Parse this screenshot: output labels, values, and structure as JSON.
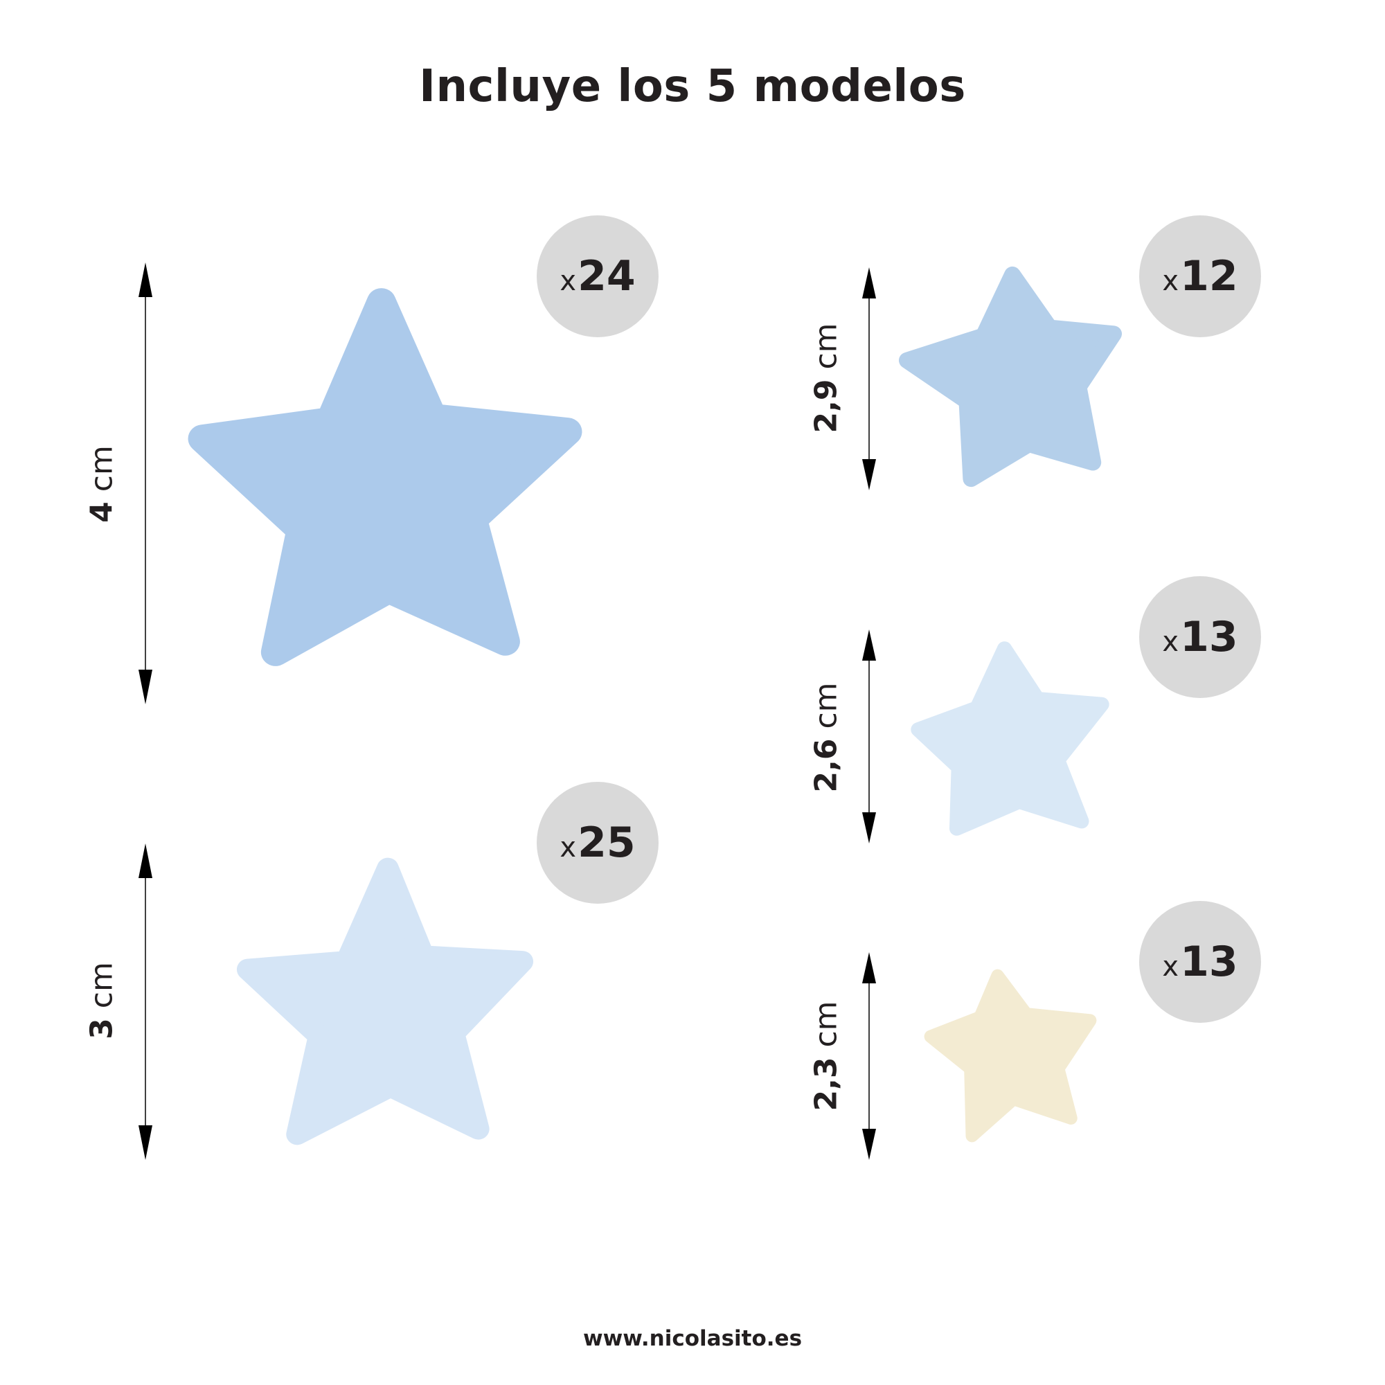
{
  "title": "Incluye los 5 modelos",
  "footer": "www.nicolasito.es",
  "models": [
    {
      "size": "4",
      "unit": "cm",
      "count_prefix": "x",
      "count": "24",
      "color": "#a8c8ea"
    },
    {
      "size": "3",
      "unit": "cm",
      "count_prefix": "x",
      "count": "25",
      "color": "#d3e4f6"
    },
    {
      "size": "2,9",
      "unit": "cm",
      "count_prefix": "x",
      "count": "12",
      "color": "#b1cde9"
    },
    {
      "size": "2,6",
      "unit": "cm",
      "count_prefix": "x",
      "count": "13",
      "color": "#d7e7f6"
    },
    {
      "size": "2,3",
      "unit": "cm",
      "count_prefix": "x",
      "count": "13",
      "color": "#f3ead0"
    }
  ]
}
